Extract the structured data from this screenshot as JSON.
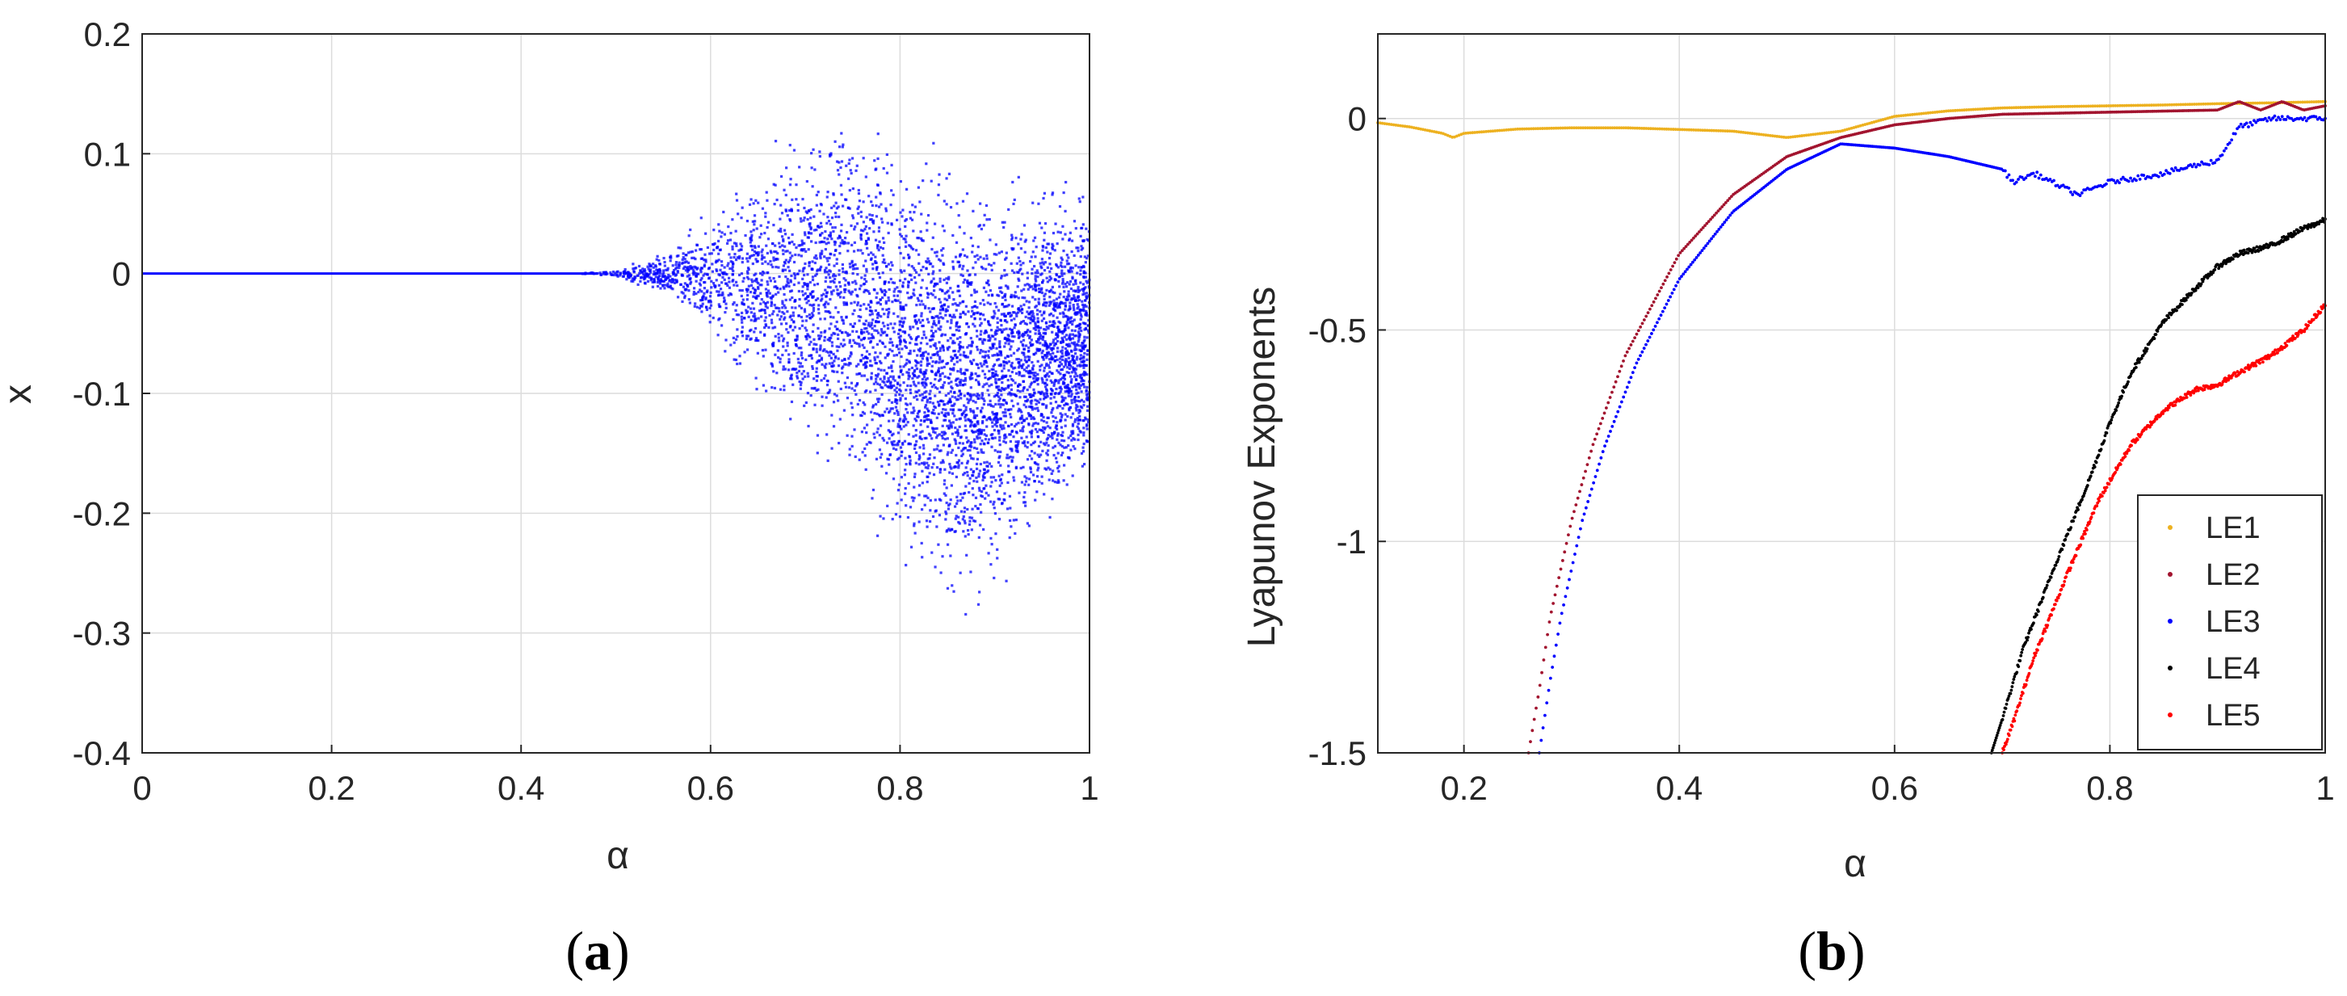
{
  "chart_data": [
    {
      "panel_label": "a",
      "type": "scatter",
      "title": "",
      "xlabel": "α",
      "ylabel": "x",
      "xlim": [
        0,
        1
      ],
      "ylim": [
        -0.4,
        0.2
      ],
      "xticks": [
        0,
        0.2,
        0.4,
        0.6,
        0.8,
        1
      ],
      "xtick_labels": [
        "0",
        "0.2",
        "0.4",
        "0.6",
        "0.8",
        "1"
      ],
      "yticks": [
        -0.4,
        -0.3,
        -0.2,
        -0.1,
        0,
        0.1,
        0.2
      ],
      "ytick_labels": [
        "-0.4",
        "-0.3",
        "-0.2",
        "-0.1",
        "0",
        "0.1",
        "0.2"
      ],
      "grid": true,
      "series": [
        {
          "color": "#0000ff",
          "envelope": {
            "alpha": [
              0,
              0.45,
              0.5,
              0.55,
              0.6,
              0.65,
              0.7,
              0.75,
              0.8,
              0.85,
              0.88,
              0.9,
              0.95,
              1.0
            ],
            "upper": [
              0,
              0,
              0.003,
              0.02,
              0.06,
              0.1,
              0.14,
              0.155,
              0.13,
              0.11,
              0.1,
              0.1,
              0.1,
              0.09
            ],
            "lower": [
              0,
              0,
              -0.003,
              -0.02,
              -0.07,
              -0.12,
              -0.18,
              -0.2,
              -0.26,
              -0.29,
              -0.305,
              -0.28,
              -0.23,
              -0.2
            ]
          }
        }
      ]
    },
    {
      "panel_label": "b",
      "type": "scatter",
      "title": "",
      "xlabel": "α",
      "ylabel": "Lyapunov Exponents",
      "xlim": [
        0.12,
        1
      ],
      "ylim": [
        -1.5,
        0.2
      ],
      "xticks": [
        0.2,
        0.4,
        0.6,
        0.8,
        1
      ],
      "xtick_labels": [
        "0.2",
        "0.4",
        "0.6",
        "0.8",
        "1"
      ],
      "yticks": [
        -1.5,
        -1,
        -0.5,
        0
      ],
      "ytick_labels": [
        "-1.5",
        "-1",
        "-0.5",
        "0"
      ],
      "grid": true,
      "legend": "bottom-right",
      "series": [
        {
          "name": "LE1",
          "color": "#edb120",
          "x": [
            0.12,
            0.15,
            0.18,
            0.19,
            0.2,
            0.25,
            0.3,
            0.35,
            0.4,
            0.45,
            0.5,
            0.55,
            0.6,
            0.65,
            0.7,
            0.75,
            0.8,
            0.85,
            0.9,
            0.95,
            1.0
          ],
          "y": [
            -0.01,
            -0.02,
            -0.035,
            -0.045,
            -0.035,
            -0.025,
            -0.022,
            -0.022,
            -0.026,
            -0.03,
            -0.045,
            -0.03,
            0.005,
            0.018,
            0.025,
            0.028,
            0.03,
            0.032,
            0.035,
            0.037,
            0.04
          ]
        },
        {
          "name": "LE2",
          "color": "#a2142f",
          "x": [
            0.26,
            0.27,
            0.28,
            0.3,
            0.32,
            0.35,
            0.4,
            0.45,
            0.5,
            0.55,
            0.6,
            0.65,
            0.7,
            0.8,
            0.9,
            0.92,
            0.94,
            0.96,
            0.98,
            1.0
          ],
          "y": [
            -1.5,
            -1.35,
            -1.18,
            -0.95,
            -0.77,
            -0.56,
            -0.32,
            -0.18,
            -0.09,
            -0.045,
            -0.015,
            0.0,
            0.01,
            0.015,
            0.02,
            0.04,
            0.02,
            0.04,
            0.02,
            0.03
          ]
        },
        {
          "name": "LE3",
          "color": "#0000ff",
          "x": [
            0.27,
            0.28,
            0.29,
            0.31,
            0.33,
            0.36,
            0.4,
            0.45,
            0.5,
            0.55,
            0.6,
            0.65,
            0.7,
            0.71,
            0.73,
            0.77,
            0.8,
            0.85,
            0.88,
            0.9,
            0.92,
            0.95,
            1.0
          ],
          "y": [
            -1.5,
            -1.33,
            -1.18,
            -0.95,
            -0.78,
            -0.58,
            -0.38,
            -0.22,
            -0.12,
            -0.06,
            -0.07,
            -0.09,
            -0.12,
            -0.15,
            -0.13,
            -0.18,
            -0.15,
            -0.13,
            -0.11,
            -0.1,
            -0.02,
            0.0,
            0.0
          ]
        },
        {
          "name": "LE4",
          "color": "#000000",
          "x": [
            0.69,
            0.7,
            0.72,
            0.75,
            0.78,
            0.8,
            0.82,
            0.85,
            0.88,
            0.9,
            0.92,
            0.95,
            0.98,
            1.0
          ],
          "y": [
            -1.5,
            -1.42,
            -1.25,
            -1.05,
            -0.86,
            -0.72,
            -0.6,
            -0.48,
            -0.4,
            -0.35,
            -0.32,
            -0.3,
            -0.26,
            -0.24
          ]
        },
        {
          "name": "LE5",
          "color": "#ff0000",
          "x": [
            0.7,
            0.71,
            0.73,
            0.76,
            0.79,
            0.82,
            0.85,
            0.88,
            0.9,
            0.92,
            0.95,
            0.98,
            1.0
          ],
          "y": [
            -1.5,
            -1.43,
            -1.27,
            -1.08,
            -0.9,
            -0.77,
            -0.69,
            -0.64,
            -0.63,
            -0.6,
            -0.56,
            -0.5,
            -0.44
          ]
        }
      ]
    }
  ]
}
